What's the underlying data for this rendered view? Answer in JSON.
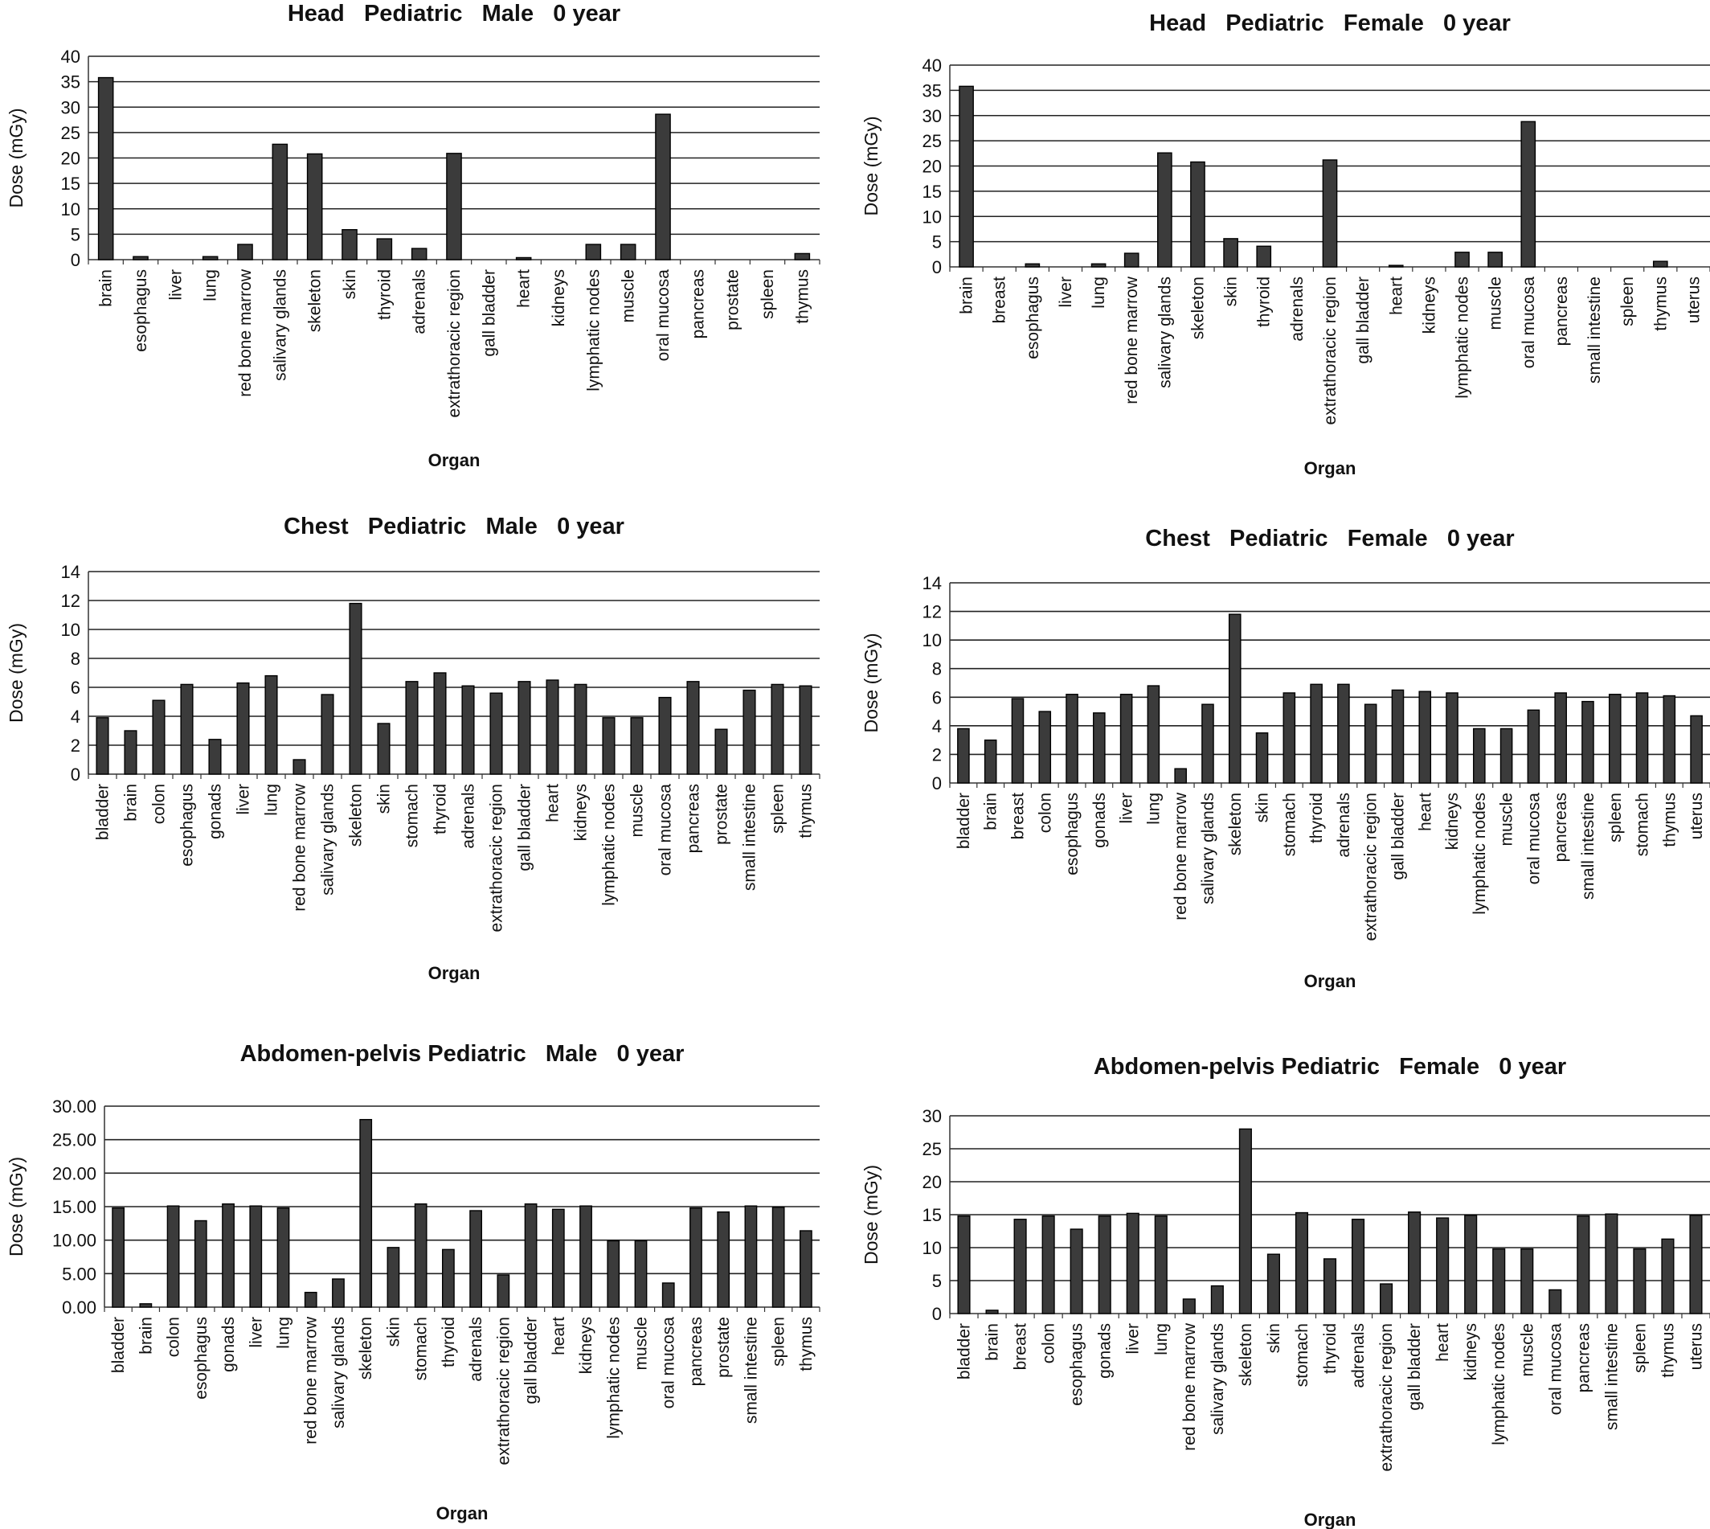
{
  "chart_data": [
    {
      "type": "bar",
      "title": "Head   Pediatric   Male   0 year",
      "xlabel": "Organ",
      "ylabel": "Dose (mGy)",
      "ylim": [
        0,
        40
      ],
      "yticks": [
        "0",
        "5",
        "10",
        "15",
        "20",
        "25",
        "30",
        "35",
        "40"
      ],
      "grid": true,
      "categories": [
        "brain",
        "esophagus",
        "liver",
        "lung",
        "red bone marrow",
        "salivary glands",
        "skeleton",
        "skin",
        "thyroid",
        "adrenals",
        "extrathoracic region",
        "gall bladder",
        "heart",
        "kidneys",
        "lymphatic nodes",
        "muscle",
        "oral mucosa",
        "pancreas",
        "prostate",
        "spleen",
        "thymus"
      ],
      "values": [
        35.8,
        0.6,
        0,
        0.6,
        3.0,
        22.7,
        20.8,
        5.9,
        4.1,
        2.2,
        20.9,
        0,
        0.4,
        0,
        3.0,
        3.0,
        28.6,
        0,
        0,
        0,
        1.2
      ]
    },
    {
      "type": "bar",
      "title": "Head   Pediatric   Female   0 year",
      "xlabel": "Organ",
      "ylabel": "Dose (mGy)",
      "ylim": [
        0,
        40
      ],
      "yticks": [
        "0",
        "5",
        "10",
        "15",
        "20",
        "25",
        "30",
        "35",
        "40"
      ],
      "grid": true,
      "categories": [
        "brain",
        "breast",
        "esophagus",
        "liver",
        "lung",
        "red bone marrow",
        "salivary glands",
        "skeleton",
        "skin",
        "thyroid",
        "adrenals",
        "extrathoracic region",
        "gall bladder",
        "heart",
        "kidneys",
        "lymphatic nodes",
        "muscle",
        "oral mucosa",
        "pancreas",
        "small intestine",
        "spleen",
        "thymus",
        "uterus"
      ],
      "values": [
        35.8,
        0,
        0.6,
        0,
        0.6,
        2.7,
        22.6,
        20.8,
        5.6,
        4.1,
        0,
        21.2,
        0,
        0.3,
        0,
        2.9,
        2.9,
        28.8,
        0,
        0,
        0,
        1.1,
        0
      ]
    },
    {
      "type": "bar",
      "title": "Chest   Pediatric   Male   0 year",
      "xlabel": "Organ",
      "ylabel": "Dose (mGy)",
      "ylim": [
        0,
        14
      ],
      "yticks": [
        "0",
        "2",
        "4",
        "6",
        "8",
        "10",
        "12",
        "14"
      ],
      "grid": true,
      "categories": [
        "bladder",
        "brain",
        "colon",
        "esophagus",
        "gonads",
        "liver",
        "lung",
        "red bone marrow",
        "salivary glands",
        "skeleton",
        "skin",
        "stomach",
        "thyroid",
        "adrenals",
        "extrathoracic region",
        "gall bladder",
        "heart",
        "kidneys",
        "lymphatic nodes",
        "muscle",
        "oral mucosa",
        "pancreas",
        "prostate",
        "small intestine",
        "spleen",
        "thymus"
      ],
      "values": [
        3.9,
        3.0,
        5.1,
        6.2,
        2.4,
        6.3,
        6.8,
        1.0,
        5.5,
        11.8,
        3.5,
        6.4,
        7.0,
        6.1,
        5.6,
        6.4,
        6.5,
        6.2,
        3.9,
        3.9,
        5.3,
        6.4,
        3.1,
        5.8,
        6.2,
        6.1
      ]
    },
    {
      "type": "bar",
      "title": "Chest   Pediatric   Female   0 year",
      "xlabel": "Organ",
      "ylabel": "Dose (mGy)",
      "ylim": [
        0,
        14
      ],
      "yticks": [
        "0",
        "2",
        "4",
        "6",
        "8",
        "10",
        "12",
        "14"
      ],
      "grid": true,
      "categories": [
        "bladder",
        "brain",
        "breast",
        "colon",
        "esophagus",
        "gonads",
        "liver",
        "lung",
        "red bone marrow",
        "salivary glands",
        "skeleton",
        "skin",
        "stomach",
        "thyroid",
        "adrenals",
        "extrathoracic region",
        "gall bladder",
        "heart",
        "kidneys",
        "lymphatic nodes",
        "muscle",
        "oral mucosa",
        "pancreas",
        "small intestine",
        "spleen",
        "stomach",
        "thymus",
        "uterus"
      ],
      "values": [
        3.8,
        3.0,
        5.9,
        5.0,
        6.2,
        4.9,
        6.2,
        6.8,
        1.0,
        5.5,
        11.8,
        3.5,
        6.3,
        6.9,
        6.9,
        5.5,
        6.5,
        6.4,
        6.3,
        3.8,
        3.8,
        5.1,
        6.3,
        5.7,
        6.2,
        6.3,
        6.1,
        4.7
      ]
    },
    {
      "type": "bar",
      "title": "Abdomen-pelvis Pediatric   Male   0 year",
      "xlabel": "Organ",
      "ylabel": "Dose (mGy)",
      "ylim": [
        0,
        30
      ],
      "yticks": [
        "0.00",
        "5.00",
        "10.00",
        "15.00",
        "20.00",
        "25.00",
        "30.00"
      ],
      "grid": true,
      "categories": [
        "bladder",
        "brain",
        "colon",
        "esophagus",
        "gonads",
        "liver",
        "lung",
        "red bone marrow",
        "salivary glands",
        "skeleton",
        "skin",
        "stomach",
        "thyroid",
        "adrenals",
        "extrathoracic region",
        "gall bladder",
        "heart",
        "kidneys",
        "lymphatic nodes",
        "muscle",
        "oral mucosa",
        "pancreas",
        "prostate",
        "small intestine",
        "spleen",
        "thymus"
      ],
      "values": [
        14.8,
        0.5,
        15.1,
        12.9,
        15.4,
        15.1,
        14.8,
        2.2,
        4.2,
        28.0,
        8.9,
        15.4,
        8.6,
        14.4,
        4.8,
        15.4,
        14.6,
        15.1,
        9.9,
        9.9,
        3.6,
        14.8,
        14.2,
        15.1,
        14.9,
        11.4
      ]
    },
    {
      "type": "bar",
      "title": "Abdomen-pelvis Pediatric   Female   0 year",
      "xlabel": "Organ",
      "ylabel": "Dose (mGy)",
      "ylim": [
        0,
        30
      ],
      "yticks": [
        "0",
        "5",
        "10",
        "15",
        "20",
        "25",
        "30"
      ],
      "grid": true,
      "categories": [
        "bladder",
        "brain",
        "breast",
        "colon",
        "esophagus",
        "gonads",
        "liver",
        "lung",
        "red bone marrow",
        "salivary glands",
        "skeleton",
        "skin",
        "stomach",
        "thyroid",
        "adrenals",
        "extrathoracic region",
        "gall bladder",
        "heart",
        "kidneys",
        "lymphatic nodes",
        "muscle",
        "oral mucosa",
        "pancreas",
        "small intestine",
        "spleen",
        "thymus",
        "uterus"
      ],
      "values": [
        14.8,
        0.5,
        14.3,
        14.8,
        12.8,
        14.8,
        15.2,
        14.8,
        2.2,
        4.2,
        28.0,
        9.0,
        15.3,
        8.3,
        14.3,
        4.5,
        15.4,
        14.5,
        14.9,
        9.8,
        9.8,
        3.6,
        14.8,
        15.1,
        9.8,
        11.3,
        14.9
      ]
    }
  ]
}
